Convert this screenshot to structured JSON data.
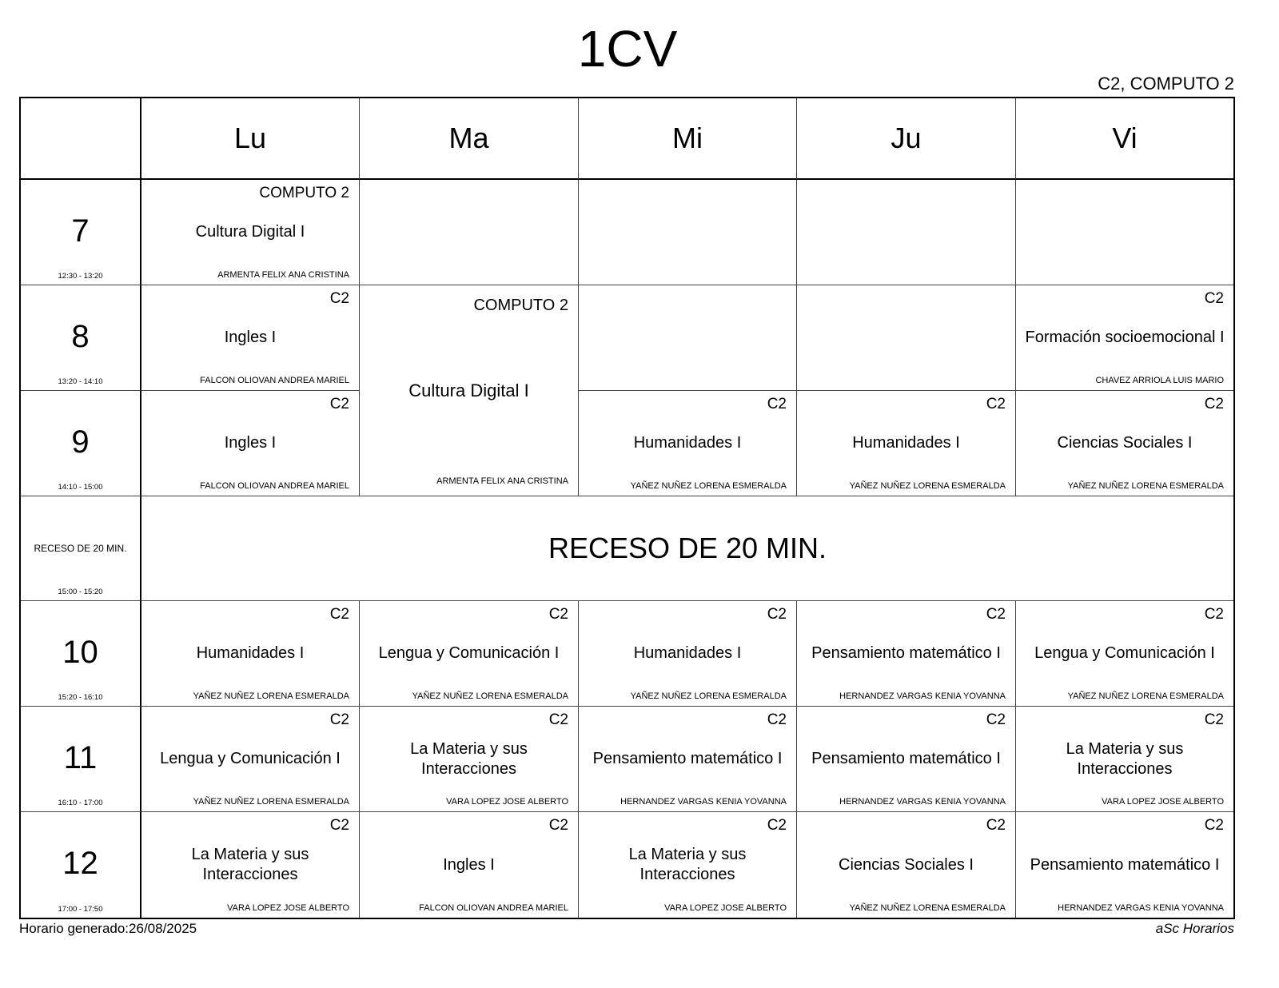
{
  "title": "1CV",
  "room_header": "C2, COMPUTO 2",
  "days": [
    "Lu",
    "Ma",
    "Mi",
    "Ju",
    "Vi"
  ],
  "periods": [
    {
      "label": "7",
      "time": "12:30 - 13:20"
    },
    {
      "label": "8",
      "time": "13:20 - 14:10"
    },
    {
      "label": "9",
      "time": "14:10 - 15:00"
    },
    {
      "label": "RECESO DE 20 MIN.",
      "time": "15:00 - 15:20",
      "is_break": true
    },
    {
      "label": "10",
      "time": "15:20 - 16:10"
    },
    {
      "label": "11",
      "time": "16:10 - 17:00"
    },
    {
      "label": "12",
      "time": "17:00 - 17:50"
    }
  ],
  "break_text": "RECESO DE 20 MIN.",
  "lessons": [
    {
      "day": 0,
      "period": 0,
      "span": 1,
      "room": "COMPUTO 2",
      "subject": "Cultura Digital I",
      "teacher": "ARMENTA FELIX ANA CRISTINA"
    },
    {
      "day": 0,
      "period": 1,
      "span": 1,
      "room": "C2",
      "subject": "Ingles I",
      "teacher": "FALCON OLIOVAN ANDREA MARIEL"
    },
    {
      "day": 1,
      "period": 1,
      "span": 2,
      "room": "COMPUTO 2",
      "subject": "Cultura Digital I",
      "teacher": "ARMENTA FELIX ANA CRISTINA"
    },
    {
      "day": 4,
      "period": 1,
      "span": 1,
      "room": "C2",
      "subject": "Formación socioemocional I",
      "teacher": "CHAVEZ ARRIOLA LUIS MARIO"
    },
    {
      "day": 0,
      "period": 2,
      "span": 1,
      "room": "C2",
      "subject": "Ingles I",
      "teacher": "FALCON OLIOVAN ANDREA MARIEL"
    },
    {
      "day": 2,
      "period": 2,
      "span": 1,
      "room": "C2",
      "subject": "Humanidades I",
      "teacher": "YAÑEZ NUÑEZ LORENA ESMERALDA"
    },
    {
      "day": 3,
      "period": 2,
      "span": 1,
      "room": "C2",
      "subject": "Humanidades I",
      "teacher": "YAÑEZ NUÑEZ LORENA ESMERALDA"
    },
    {
      "day": 4,
      "period": 2,
      "span": 1,
      "room": "C2",
      "subject": "Ciencias Sociales I",
      "teacher": "YAÑEZ NUÑEZ LORENA ESMERALDA"
    },
    {
      "day": 0,
      "period": 4,
      "span": 1,
      "room": "C2",
      "subject": "Humanidades I",
      "teacher": "YAÑEZ NUÑEZ LORENA ESMERALDA"
    },
    {
      "day": 1,
      "period": 4,
      "span": 1,
      "room": "C2",
      "subject": "Lengua y Comunicación I",
      "teacher": "YAÑEZ NUÑEZ LORENA ESMERALDA"
    },
    {
      "day": 2,
      "period": 4,
      "span": 1,
      "room": "C2",
      "subject": "Humanidades I",
      "teacher": "YAÑEZ NUÑEZ LORENA ESMERALDA"
    },
    {
      "day": 3,
      "period": 4,
      "span": 1,
      "room": "C2",
      "subject": "Pensamiento matemático I",
      "teacher": "HERNANDEZ VARGAS KENIA YOVANNA"
    },
    {
      "day": 4,
      "period": 4,
      "span": 1,
      "room": "C2",
      "subject": "Lengua y Comunicación I",
      "teacher": "YAÑEZ NUÑEZ LORENA ESMERALDA"
    },
    {
      "day": 0,
      "period": 5,
      "span": 1,
      "room": "C2",
      "subject": "Lengua y Comunicación I",
      "teacher": "YAÑEZ NUÑEZ LORENA ESMERALDA"
    },
    {
      "day": 1,
      "period": 5,
      "span": 1,
      "room": "C2",
      "subject": "La Materia y sus Interacciones",
      "teacher": "VARA LOPEZ JOSE ALBERTO"
    },
    {
      "day": 2,
      "period": 5,
      "span": 1,
      "room": "C2",
      "subject": "Pensamiento matemático I",
      "teacher": "HERNANDEZ VARGAS KENIA YOVANNA"
    },
    {
      "day": 3,
      "period": 5,
      "span": 1,
      "room": "C2",
      "subject": "Pensamiento matemático I",
      "teacher": "HERNANDEZ VARGAS KENIA YOVANNA"
    },
    {
      "day": 4,
      "period": 5,
      "span": 1,
      "room": "C2",
      "subject": "La Materia y sus Interacciones",
      "teacher": "VARA LOPEZ JOSE ALBERTO"
    },
    {
      "day": 0,
      "period": 6,
      "span": 1,
      "room": "C2",
      "subject": "La Materia y sus Interacciones",
      "teacher": "VARA LOPEZ JOSE ALBERTO"
    },
    {
      "day": 1,
      "period": 6,
      "span": 1,
      "room": "C2",
      "subject": "Ingles I",
      "teacher": "FALCON OLIOVAN ANDREA MARIEL"
    },
    {
      "day": 2,
      "period": 6,
      "span": 1,
      "room": "C2",
      "subject": "La Materia y sus Interacciones",
      "teacher": "VARA LOPEZ JOSE ALBERTO"
    },
    {
      "day": 3,
      "period": 6,
      "span": 1,
      "room": "C2",
      "subject": "Ciencias Sociales I",
      "teacher": "YAÑEZ NUÑEZ LORENA ESMERALDA"
    },
    {
      "day": 4,
      "period": 6,
      "span": 1,
      "room": "C2",
      "subject": "Pensamiento matemático I",
      "teacher": "HERNANDEZ VARGAS KENIA YOVANNA"
    }
  ],
  "footer": {
    "generated": "Horario generado:26/08/2025",
    "brand": "aSc Horarios"
  }
}
